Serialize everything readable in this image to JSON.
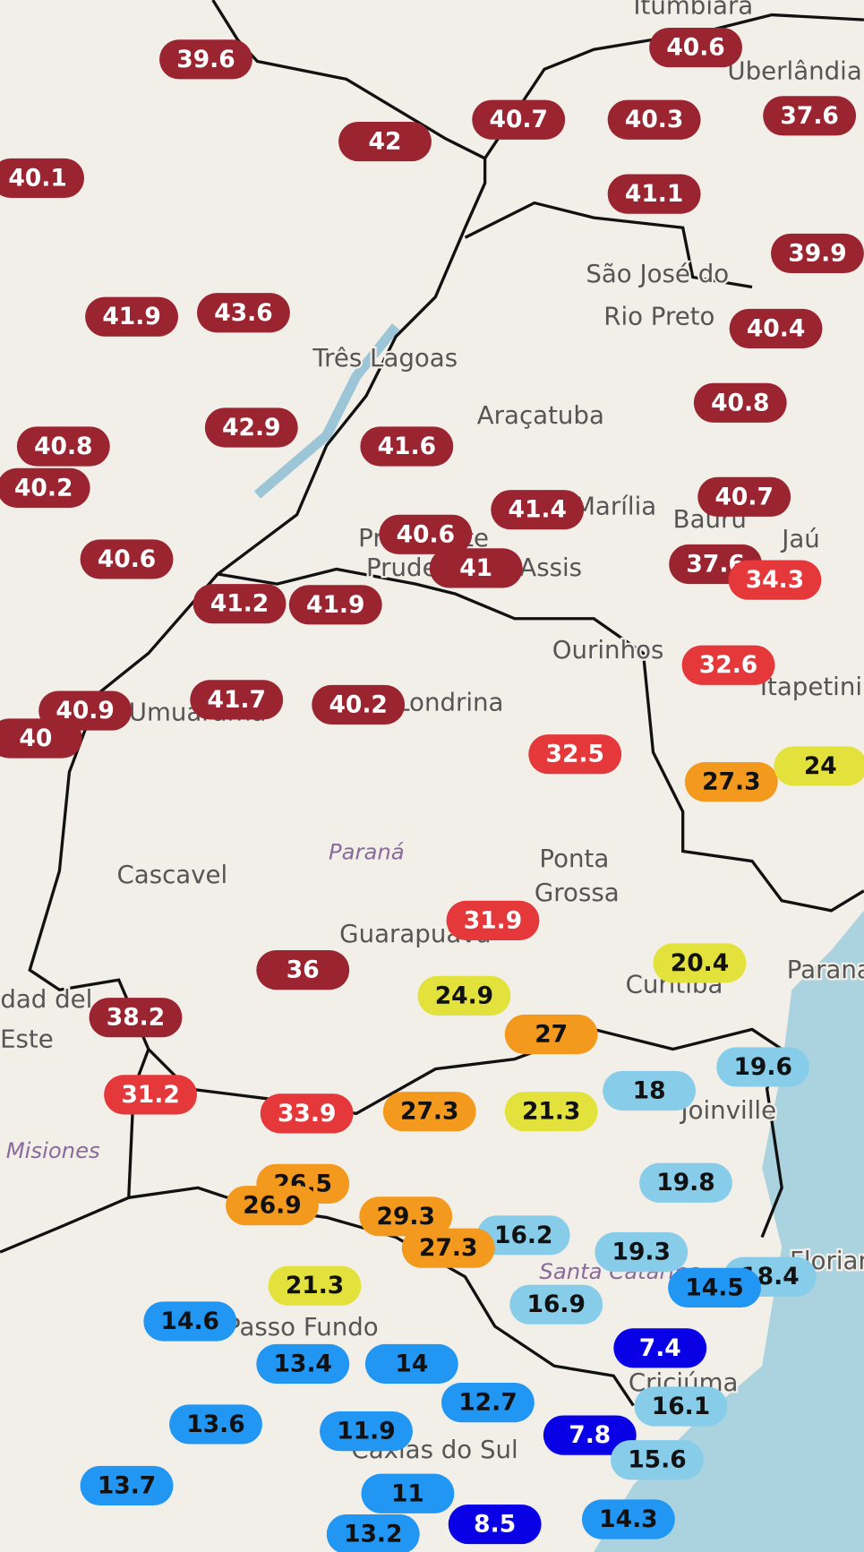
{
  "places": [
    "Itumbiara",
    "Uberlândia",
    "São José do",
    "Rio Preto",
    "Três Lagoas",
    "Araçatuba",
    "Marília",
    "Bauru",
    "Jaú",
    "Presidente",
    "Prudente",
    "Assis",
    "Ourinhos",
    "Itapetininga",
    "Londrina",
    "Umuarama",
    "Paraná",
    "Ponta",
    "Grossa",
    "Cascavel",
    "Guarapuava",
    "Curitiba",
    "Paranaguá",
    "Ciudad del",
    "Este",
    "Misiones",
    "Joinville",
    "Santa Catarina",
    "Florianópolis",
    "Passo Fundo",
    "Criciúma",
    "Caxias do Sul"
  ],
  "markers": [
    {
      "value": 39.6,
      "color": "#9b2431"
    },
    {
      "value": 40.6,
      "color": "#9b2431"
    },
    {
      "value": 40.7,
      "color": "#9b2431"
    },
    {
      "value": 40.3,
      "color": "#9b2431"
    },
    {
      "value": 37.6,
      "color": "#9b2431"
    },
    {
      "value": 42,
      "color": "#9b2431"
    },
    {
      "value": 40.1,
      "color": "#9b2431"
    },
    {
      "value": 41.1,
      "color": "#9b2431"
    },
    {
      "value": 39.9,
      "color": "#9b2431"
    },
    {
      "value": 41.9,
      "color": "#9b2431"
    },
    {
      "value": 43.6,
      "color": "#9b2431"
    },
    {
      "value": 40.4,
      "color": "#9b2431"
    },
    {
      "value": 40.8,
      "color": "#9b2431"
    },
    {
      "value": 42.9,
      "color": "#9b2431"
    },
    {
      "value": 40.8,
      "color": "#9b2431"
    },
    {
      "value": 41.6,
      "color": "#9b2431"
    },
    {
      "value": 40.2,
      "color": "#9b2431"
    },
    {
      "value": 41.4,
      "color": "#9b2431"
    },
    {
      "value": 40.7,
      "color": "#9b2431"
    },
    {
      "value": 40.6,
      "color": "#9b2431"
    },
    {
      "value": 40.6,
      "color": "#9b2431"
    },
    {
      "value": 41,
      "color": "#9b2431"
    },
    {
      "value": 37.6,
      "color": "#9b2431"
    },
    {
      "value": 34.3,
      "color": "#e5383b"
    },
    {
      "value": 41.2,
      "color": "#9b2431"
    },
    {
      "value": 41.9,
      "color": "#9b2431"
    },
    {
      "value": 32.6,
      "color": "#e5383b"
    },
    {
      "value": 41.7,
      "color": "#9b2431"
    },
    {
      "value": 40.2,
      "color": "#9b2431"
    },
    {
      "value": 40.9,
      "color": "#9b2431"
    },
    {
      "value": 40,
      "color": "#9b2431"
    },
    {
      "value": 32.5,
      "color": "#e5383b"
    },
    {
      "value": 27.3,
      "color": "#f39a1e"
    },
    {
      "value": 24,
      "color": "#e3e23c"
    },
    {
      "value": 31.9,
      "color": "#e5383b"
    },
    {
      "value": 20.4,
      "color": "#e3e23c"
    },
    {
      "value": 36,
      "color": "#9b2431"
    },
    {
      "value": 24.9,
      "color": "#e3e23c"
    },
    {
      "value": 38.2,
      "color": "#9b2431"
    },
    {
      "value": 27,
      "color": "#f39a1e"
    },
    {
      "value": 19.6,
      "color": "#87cdea"
    },
    {
      "value": 31.2,
      "color": "#e5383b"
    },
    {
      "value": 18,
      "color": "#87cdea"
    },
    {
      "value": 33.9,
      "color": "#e5383b"
    },
    {
      "value": 27.3,
      "color": "#f39a1e"
    },
    {
      "value": 21.3,
      "color": "#e3e23c"
    },
    {
      "value": 19.8,
      "color": "#87cdea"
    },
    {
      "value": 26.5,
      "color": "#f39a1e"
    },
    {
      "value": 26.9,
      "color": "#f39a1e"
    },
    {
      "value": 29.3,
      "color": "#f39a1e"
    },
    {
      "value": 16.2,
      "color": "#87cdea"
    },
    {
      "value": 27.3,
      "color": "#f39a1e"
    },
    {
      "value": 19.3,
      "color": "#87cdea"
    },
    {
      "value": 18.4,
      "color": "#87cdea"
    },
    {
      "value": 14.5,
      "color": "#2196f3"
    },
    {
      "value": 21.3,
      "color": "#e3e23c"
    },
    {
      "value": 16.9,
      "color": "#87cdea"
    },
    {
      "value": 14.6,
      "color": "#2196f3"
    },
    {
      "value": 7.4,
      "color": "#0a00e6"
    },
    {
      "value": 13.4,
      "color": "#2196f3"
    },
    {
      "value": 14,
      "color": "#2196f3"
    },
    {
      "value": 12.7,
      "color": "#2196f3"
    },
    {
      "value": 16.1,
      "color": "#87cdea"
    },
    {
      "value": 13.6,
      "color": "#2196f3"
    },
    {
      "value": 11.9,
      "color": "#2196f3"
    },
    {
      "value": 7.8,
      "color": "#0a00e6"
    },
    {
      "value": 15.6,
      "color": "#87cdea"
    },
    {
      "value": 13.7,
      "color": "#2196f3"
    },
    {
      "value": 11,
      "color": "#2196f3"
    },
    {
      "value": 14.3,
      "color": "#2196f3"
    },
    {
      "value": 8.5,
      "color": "#0a00e6"
    },
    {
      "value": 13.2,
      "color": "#2196f3"
    }
  ]
}
